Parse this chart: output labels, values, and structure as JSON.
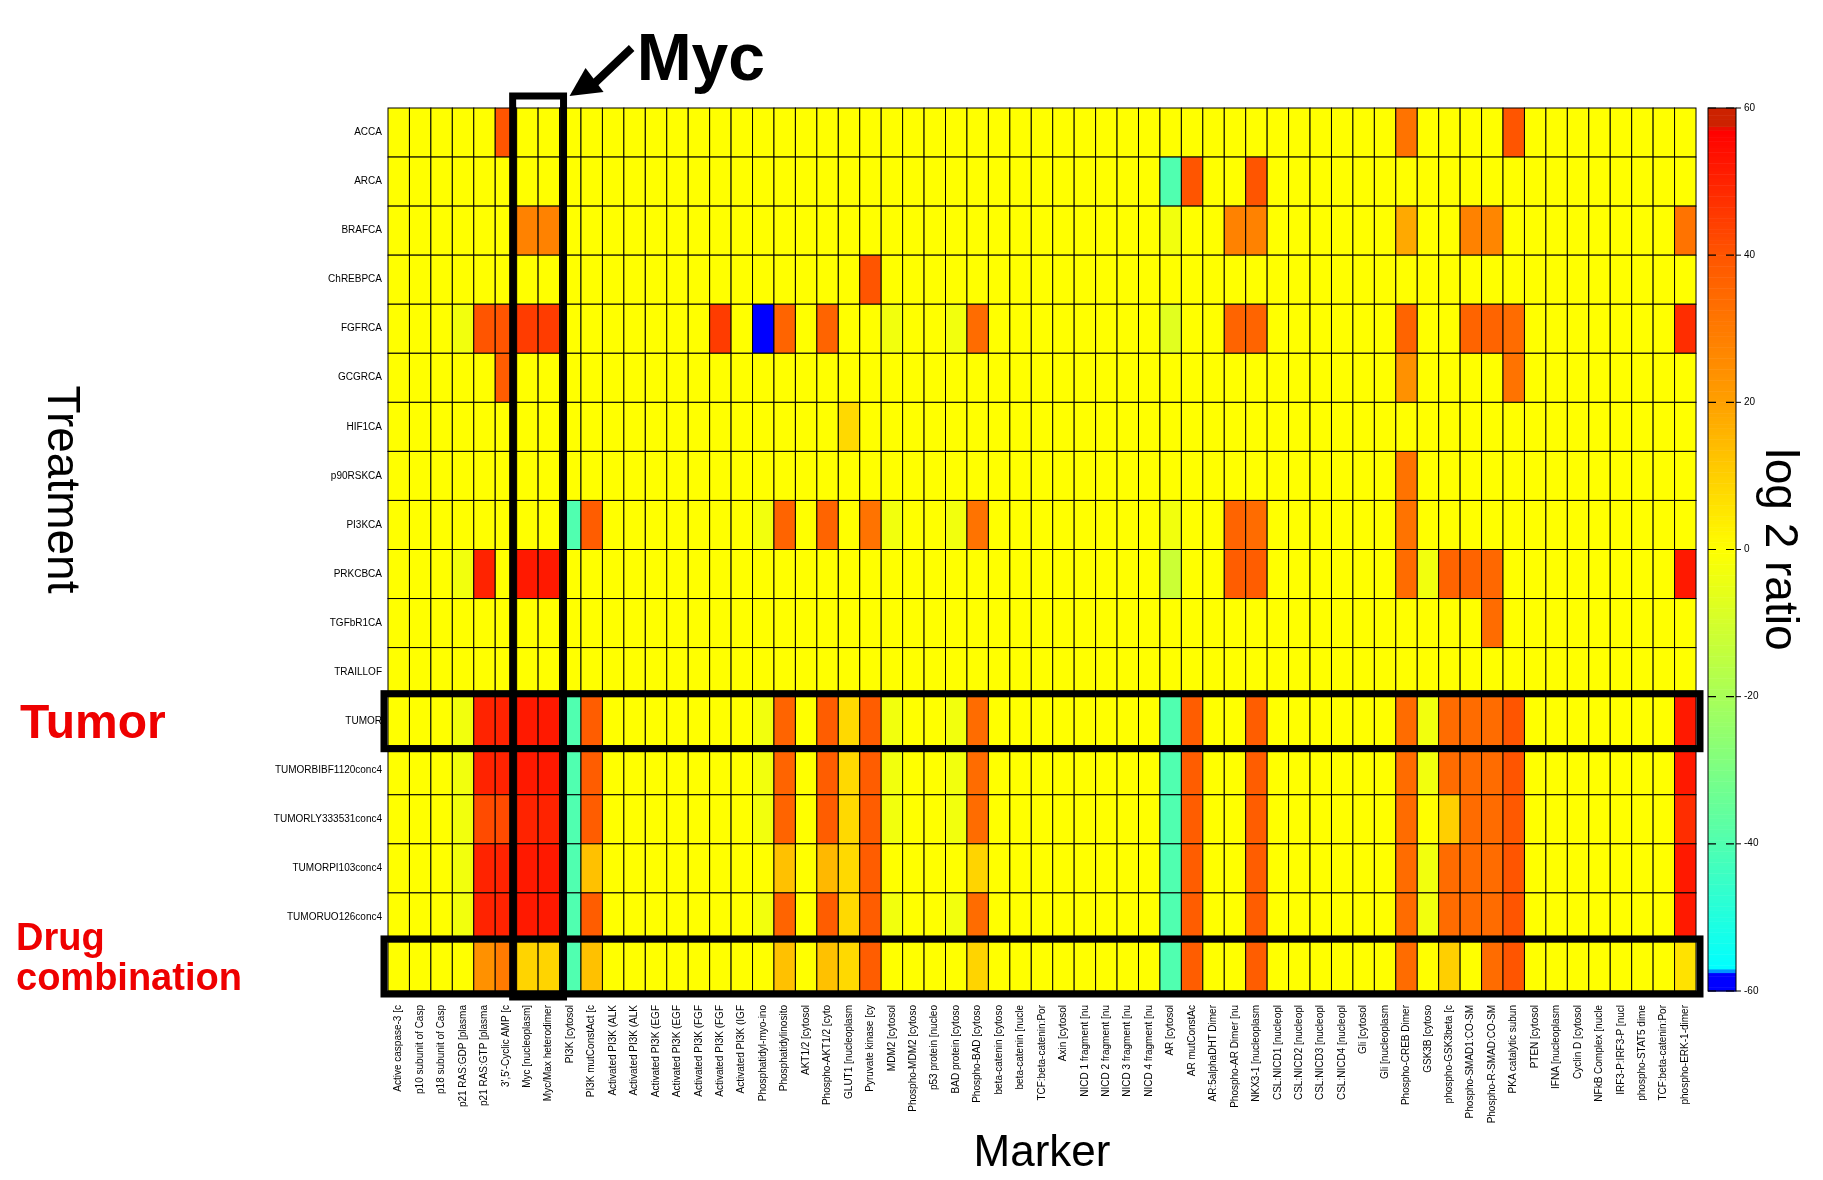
{
  "chart_data": {
    "type": "heatmap",
    "xlabel": "Marker",
    "ylabel": "Treatment",
    "clabel": "log 2 ratio",
    "categories": [
      "Active caspase-3 [c",
      "p10 subunit of Casp",
      "p18 subunit of Casp",
      "p21 RAS:GDP [plasma",
      "p21 RAS:GTP [plasma",
      "3',5'-Cyclic AMP [c",
      "Myc [nucleoplasm]",
      "Myc/Max heterodimer",
      "PI3K [cytosol",
      "PI3K mutConstAct [c",
      "Activated PI3K (ALK",
      "Activated PI3K (ALK",
      "Activated PI3K (EGF",
      "Activated PI3K (EGF",
      "Activated PI3K (FGF",
      "Activated PI3K (FGF",
      "Activated PI3K (IGF",
      "Phosphatidyl-myo-ino",
      "Phosphatidylinosito",
      "AKT1/2 [cytosol",
      "Phospho-AKT1/2 [cyto",
      "GLUT1 [nucleoplasm",
      "Pyruvate kinase [cy",
      "MDM2 [cytosol",
      "Phospho-MDM2 [cytoso",
      "p53 protein [nucleo",
      "BAD protein [cytoso",
      "Phospho-BAD [cytoso",
      "beta-catenin [cytoso",
      "beta-catenin [nucle",
      "TCF:beta-catenin:Por",
      "Axin [cytosol",
      "NICD 1 fragment [nu",
      "NICD 2 fragment [nu",
      "NICD 3 fragment [nu",
      "NICD 4 fragment [nu",
      "AR [cytosol",
      "AR mutConstAc",
      "AR:5alphaDHT Dimer",
      "Phospho-AR Dimer [nu",
      "NKX3-1 [nucleoplasm",
      "CSL:NICD1 [nucleopl",
      "CSL:NICD2 [nucleopl",
      "CSL:NICD3 [nucleopl",
      "CSL:NICD4 [nucleopl",
      "Gli [cytosol",
      "Gli [nucleoplasm",
      "Phospho-CREB Dimer",
      "GSK3B [cytoso",
      "phospho-GSK3beta [c",
      "Phospho-SMAD1:CO-SM",
      "Phospho-R-SMAD:CO-SM",
      "PKA catalytic subun",
      "PTEN [cytosol",
      "IFNA [nucleoplasm",
      "Cyclin D [cytosol",
      "NFkB Complex [nucle",
      "IRF3-P:IRF3-P [nucl",
      "phospho-STAT5 dime",
      "TCF:beta-catenin:Por",
      "phospho-ERK-1-dimer"
    ],
    "y_categories": [
      "ACCA",
      "ARCA",
      "BRAFCA",
      "ChREBPCA",
      "FGFRCA",
      "GCGRCA",
      "HIF1CA",
      "p90RSKCA",
      "PI3KCA",
      "PRKCBCA",
      "TGFbR1CA",
      "TRAILLOF",
      "TUMOR",
      "TUMORBIBF1120conc4",
      "TUMORLY333531conc4",
      "TUMORPI103conc4",
      "TUMORUO126conc4",
      null
    ],
    "cells": [
      [
        0,
        0,
        0,
        0,
        0,
        40,
        0,
        0,
        0,
        0,
        0,
        0,
        0,
        0,
        0,
        0,
        0,
        0,
        0,
        0,
        0,
        0,
        0,
        0,
        0,
        0,
        0,
        0,
        0,
        0,
        0,
        0,
        0,
        0,
        0,
        0,
        0,
        0,
        0,
        0,
        0,
        0,
        0,
        0,
        0,
        0,
        0,
        32,
        0,
        0,
        0,
        0,
        40,
        0,
        0,
        0,
        0,
        0,
        0,
        0,
        0
      ],
      [
        0,
        0,
        0,
        0,
        0,
        0,
        0,
        0,
        0,
        0,
        0,
        0,
        0,
        0,
        0,
        0,
        0,
        0,
        0,
        0,
        0,
        0,
        0,
        0,
        0,
        0,
        0,
        0,
        0,
        0,
        0,
        0,
        0,
        0,
        0,
        0,
        -40,
        40,
        0,
        0,
        40,
        0,
        0,
        0,
        0,
        0,
        0,
        0,
        0,
        0,
        0,
        0,
        0,
        0,
        0,
        0,
        0,
        0,
        0,
        0,
        0
      ],
      [
        0,
        0,
        0,
        0,
        0,
        0,
        28,
        28,
        0,
        0,
        0,
        0,
        0,
        0,
        0,
        0,
        0,
        0,
        0,
        0,
        0,
        0,
        0,
        0,
        0,
        0,
        0,
        0,
        0,
        0,
        0,
        0,
        0,
        0,
        0,
        0,
        -3,
        0,
        0,
        28,
        28,
        0,
        0,
        0,
        0,
        0,
        0,
        18,
        0,
        0,
        28,
        27,
        0,
        0,
        0,
        0,
        0,
        0,
        0,
        0,
        32
      ],
      [
        0,
        0,
        0,
        0,
        0,
        0,
        0,
        0,
        0,
        0,
        0,
        0,
        0,
        0,
        0,
        0,
        0,
        0,
        0,
        0,
        0,
        0,
        40,
        0,
        0,
        0,
        0,
        0,
        0,
        0,
        0,
        0,
        0,
        0,
        0,
        0,
        0,
        0,
        0,
        0,
        0,
        0,
        0,
        0,
        0,
        0,
        0,
        0,
        0,
        0,
        0,
        0,
        0,
        0,
        0,
        0,
        0,
        0,
        0,
        0,
        0
      ],
      [
        0,
        0,
        0,
        -3,
        40,
        40,
        45,
        45,
        0,
        0,
        0,
        0,
        0,
        0,
        0,
        45,
        0,
        -60,
        36,
        0,
        36,
        0,
        0,
        -3,
        0,
        0,
        -3,
        34,
        0,
        0,
        0,
        0,
        0,
        0,
        0,
        0,
        -7,
        0,
        0,
        36,
        36,
        0,
        0,
        0,
        0,
        0,
        0,
        36,
        0,
        0,
        36,
        36,
        34,
        0,
        0,
        0,
        0,
        0,
        0,
        0,
        48
      ],
      [
        0,
        0,
        0,
        0,
        0,
        38,
        0,
        0,
        0,
        0,
        0,
        0,
        0,
        0,
        0,
        0,
        0,
        0,
        0,
        0,
        0,
        0,
        0,
        0,
        0,
        0,
        0,
        0,
        0,
        0,
        0,
        0,
        0,
        0,
        0,
        0,
        0,
        0,
        0,
        0,
        0,
        0,
        0,
        0,
        0,
        0,
        0,
        24,
        0,
        0,
        0,
        0,
        32,
        0,
        0,
        0,
        0,
        0,
        0,
        0,
        0
      ],
      [
        0,
        0,
        0,
        0,
        0,
        0,
        0,
        0,
        0,
        0,
        0,
        0,
        0,
        0,
        0,
        0,
        0,
        0,
        0,
        0,
        0,
        8,
        0,
        0,
        0,
        0,
        0,
        0,
        0,
        0,
        0,
        0,
        0,
        0,
        0,
        0,
        0,
        0,
        0,
        0,
        0,
        0,
        0,
        0,
        0,
        0,
        0,
        0,
        0,
        0,
        0,
        0,
        0,
        0,
        0,
        0,
        0,
        0,
        0,
        0,
        0
      ],
      [
        0,
        0,
        0,
        0,
        0,
        0,
        0,
        0,
        0,
        0,
        0,
        0,
        0,
        0,
        0,
        0,
        0,
        0,
        0,
        0,
        0,
        0,
        0,
        0,
        0,
        0,
        0,
        0,
        0,
        0,
        0,
        0,
        0,
        0,
        0,
        0,
        0,
        0,
        0,
        0,
        0,
        0,
        0,
        0,
        0,
        0,
        0,
        32,
        0,
        0,
        0,
        0,
        0,
        0,
        0,
        0,
        0,
        0,
        0,
        0,
        0
      ],
      [
        0,
        0,
        0,
        0,
        0,
        0,
        0,
        0,
        -40,
        38,
        0,
        0,
        0,
        0,
        0,
        0,
        0,
        -3,
        36,
        0,
        36,
        0,
        32,
        -3,
        0,
        0,
        -3,
        32,
        0,
        0,
        0,
        0,
        0,
        0,
        0,
        0,
        -3,
        0,
        0,
        36,
        34,
        0,
        0,
        0,
        0,
        0,
        0,
        32,
        0,
        0,
        0,
        0,
        0,
        0,
        0,
        0,
        0,
        0,
        0,
        0,
        0
      ],
      [
        0,
        0,
        0,
        -3,
        50,
        0,
        52,
        52,
        0,
        0,
        0,
        0,
        0,
        0,
        0,
        0,
        0,
        0,
        0,
        0,
        0,
        0,
        0,
        0,
        0,
        0,
        0,
        0,
        0,
        0,
        0,
        0,
        0,
        0,
        0,
        0,
        -12,
        0,
        0,
        38,
        38,
        0,
        0,
        0,
        0,
        0,
        0,
        34,
        -3,
        36,
        36,
        35,
        0,
        0,
        0,
        0,
        0,
        0,
        0,
        0,
        52
      ],
      [
        0,
        0,
        0,
        0,
        0,
        0,
        0,
        0,
        0,
        0,
        0,
        0,
        0,
        0,
        0,
        0,
        0,
        0,
        0,
        0,
        0,
        0,
        0,
        0,
        0,
        0,
        0,
        0,
        0,
        0,
        0,
        0,
        0,
        0,
        0,
        0,
        0,
        0,
        0,
        0,
        0,
        0,
        0,
        0,
        0,
        0,
        0,
        0,
        0,
        0,
        0,
        34,
        0,
        0,
        0,
        0,
        0,
        0,
        0,
        0,
        0
      ],
      [
        0,
        0,
        0,
        0,
        0,
        0,
        0,
        0,
        0,
        0,
        0,
        0,
        0,
        0,
        0,
        0,
        0,
        0,
        0,
        0,
        0,
        0,
        0,
        0,
        0,
        0,
        0,
        0,
        0,
        0,
        0,
        0,
        0,
        0,
        0,
        0,
        0,
        0,
        0,
        0,
        0,
        0,
        0,
        0,
        0,
        0,
        0,
        0,
        0,
        0,
        0,
        0,
        0,
        0,
        0,
        0,
        0,
        0,
        0,
        0,
        0
      ],
      [
        0,
        0,
        0,
        -3,
        50,
        50,
        52,
        52,
        -40,
        38,
        0,
        0,
        0,
        0,
        0,
        0,
        0,
        -3,
        36,
        0,
        38,
        8,
        38,
        -3,
        0,
        0,
        -3,
        34,
        0,
        0,
        0,
        0,
        0,
        0,
        0,
        0,
        -40,
        38,
        0,
        0,
        38,
        0,
        0,
        0,
        0,
        0,
        0,
        34,
        -3,
        34,
        34,
        34,
        40,
        0,
        0,
        0,
        0,
        0,
        0,
        0,
        52
      ],
      [
        0,
        0,
        0,
        -3,
        50,
        50,
        52,
        52,
        -40,
        38,
        0,
        0,
        0,
        0,
        0,
        0,
        0,
        -3,
        36,
        0,
        38,
        8,
        38,
        -3,
        0,
        0,
        -3,
        34,
        0,
        0,
        0,
        0,
        0,
        0,
        0,
        0,
        -40,
        38,
        0,
        0,
        38,
        0,
        0,
        0,
        0,
        0,
        0,
        34,
        -3,
        34,
        34,
        34,
        40,
        0,
        0,
        0,
        0,
        0,
        0,
        0,
        52
      ],
      [
        0,
        0,
        0,
        -3,
        42,
        42,
        50,
        50,
        -40,
        38,
        0,
        0,
        0,
        0,
        0,
        0,
        0,
        -3,
        36,
        0,
        38,
        8,
        38,
        -3,
        0,
        0,
        -3,
        34,
        0,
        0,
        0,
        0,
        0,
        0,
        0,
        0,
        -40,
        38,
        0,
        0,
        38,
        0,
        0,
        0,
        0,
        0,
        0,
        34,
        0,
        10,
        34,
        34,
        39,
        0,
        0,
        0,
        0,
        0,
        0,
        0,
        48
      ],
      [
        0,
        0,
        0,
        -3,
        50,
        50,
        52,
        52,
        -40,
        13,
        0,
        0,
        0,
        0,
        0,
        0,
        0,
        0,
        13,
        0,
        15,
        8,
        38,
        0,
        0,
        0,
        0,
        9,
        0,
        0,
        0,
        0,
        0,
        0,
        0,
        0,
        -40,
        38,
        0,
        0,
        38,
        0,
        0,
        0,
        0,
        0,
        0,
        34,
        -3,
        34,
        34,
        34,
        40,
        0,
        0,
        0,
        0,
        0,
        0,
        0,
        52
      ],
      [
        0,
        0,
        0,
        -3,
        50,
        50,
        52,
        52,
        -40,
        38,
        0,
        0,
        0,
        0,
        0,
        0,
        0,
        -3,
        36,
        0,
        38,
        8,
        38,
        -3,
        0,
        0,
        -3,
        34,
        0,
        0,
        0,
        0,
        0,
        0,
        0,
        0,
        -40,
        38,
        0,
        0,
        38,
        0,
        0,
        0,
        0,
        0,
        0,
        34,
        -3,
        34,
        34,
        34,
        40,
        0,
        0,
        0,
        0,
        0,
        0,
        0,
        52
      ],
      [
        0,
        0,
        0,
        0,
        24,
        30,
        9,
        9,
        -40,
        13,
        0,
        0,
        0,
        0,
        0,
        0,
        0,
        0,
        13,
        0,
        13,
        8,
        38,
        0,
        0,
        0,
        0,
        9,
        0,
        0,
        0,
        0,
        0,
        0,
        0,
        0,
        -40,
        38,
        0,
        0,
        38,
        0,
        0,
        0,
        0,
        0,
        0,
        34,
        0,
        10,
        0,
        34,
        40,
        0,
        0,
        0,
        0,
        0,
        0,
        0,
        6
      ]
    ],
    "clim": [
      -60,
      60
    ],
    "cticks": [
      -60,
      -40,
      -20,
      0,
      20,
      40,
      60
    ],
    "annotations": [
      "Myc",
      "Tumor",
      "Drug combination"
    ]
  }
}
